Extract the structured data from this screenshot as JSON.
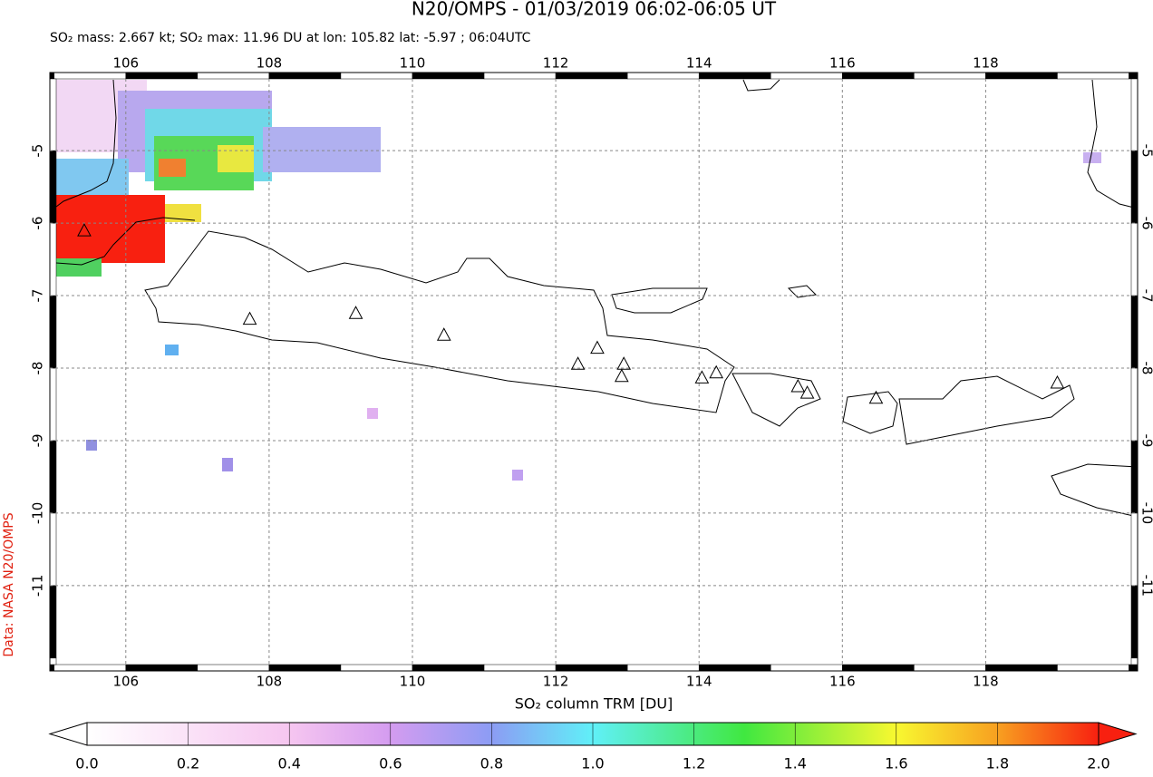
{
  "chart_data": {
    "type": "map",
    "title": "N20/OMPS - 01/03/2019 06:02-06:05 UT",
    "subtitle": "SO₂ mass: 2.667 kt; SO₂ max: 11.96 DU at lon: 105.82 lat: -5.97 ; 06:04UTC",
    "source_label": "Data: NASA N20/OMPS",
    "xlim": [
      104.94,
      120.12
    ],
    "xticks": [
      106,
      108,
      110,
      112,
      114,
      116,
      118
    ],
    "ylim": [
      -12.09,
      -4.01
    ],
    "yticks": [
      -11,
      -10,
      -9,
      -8,
      -7,
      -6,
      -5
    ],
    "grid": true,
    "volcanoes": {
      "lon": [
        105.42,
        107.73,
        109.21,
        110.44,
        112.31,
        112.58,
        112.92,
        112.95,
        114.04,
        114.24,
        115.38,
        115.51,
        116.47,
        119.0
      ],
      "lat": [
        -6.1,
        -7.32,
        -7.24,
        -7.54,
        -7.94,
        -7.72,
        -8.11,
        -7.94,
        -8.13,
        -8.06,
        -8.25,
        -8.34,
        -8.41,
        -8.2
      ]
    },
    "colorbar": {
      "label": "SO₂ column TRM [DU]",
      "lim": [
        0,
        2
      ],
      "ticks": [
        {
          "value": 0,
          "label": "0.0"
        },
        0.2,
        0.4,
        0.6,
        0.8,
        {
          "value": 1,
          "label": "1.0"
        },
        1.2,
        1.4,
        1.6,
        1.8,
        {
          "value": 2,
          "label": "2.0"
        }
      ]
    }
  }
}
